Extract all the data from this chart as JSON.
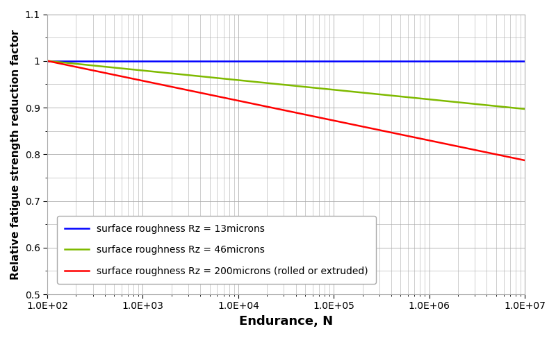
{
  "title": "",
  "xlabel": "Endurance, N",
  "ylabel": "Relative fatigue strength reduction factor",
  "xlim": [
    100,
    10000000
  ],
  "ylim": [
    0.5,
    1.1
  ],
  "yticks": [
    0.5,
    0.6,
    0.7,
    0.8,
    0.9,
    1.0,
    1.1
  ],
  "xticks": [
    100,
    1000,
    10000,
    100000,
    1000000,
    10000000
  ],
  "lines": [
    {
      "label": "surface roughness Rz = 13microns",
      "color": "#0000FF",
      "N_start": 100,
      "N_end": 10000000,
      "f_start": 1.0,
      "f_end": 1.0
    },
    {
      "label": "surface roughness Rz = 46microns",
      "color": "#7FBA00",
      "N_start": 100,
      "N_end": 10000000,
      "f_start": 1.0,
      "f_end": 0.897
    },
    {
      "label": "surface roughness Rz = 200microns (rolled or extruded)",
      "color": "#FF0000",
      "N_start": 100,
      "N_end": 10000000,
      "f_start": 1.0,
      "f_end": 0.787
    }
  ],
  "grid_color": "#AAAAAA",
  "background_color": "#FFFFFF",
  "xlabel_fontsize": 13,
  "ylabel_fontsize": 11,
  "tick_fontsize": 10,
  "legend_fontsize": 10,
  "linewidth": 1.8
}
